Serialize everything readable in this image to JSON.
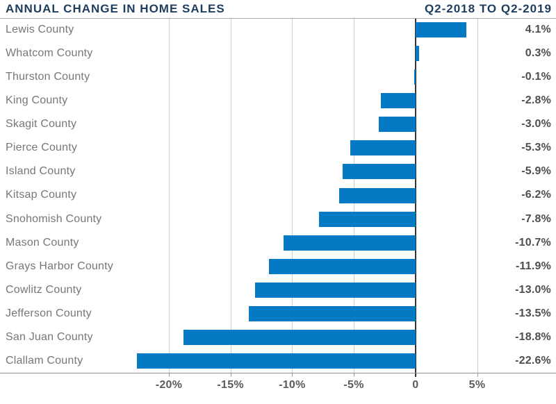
{
  "header": {
    "title": "ANNUAL CHANGE IN HOME SALES",
    "period": "Q2-2018 TO Q2-2019"
  },
  "chart_data": {
    "type": "bar",
    "orientation": "horizontal",
    "title": "ANNUAL CHANGE IN HOME SALES",
    "subtitle": "Q2-2018 TO Q2-2019",
    "xlabel": "",
    "ylabel": "",
    "categories": [
      "Lewis County",
      "Whatcom County",
      "Thurston County",
      "King County",
      "Skagit County",
      "Pierce County",
      "Island County",
      "Kitsap County",
      "Snohomish County",
      "Mason County",
      "Grays Harbor County",
      "Cowlitz County",
      "Jefferson County",
      "San Juan County",
      "Clallam County"
    ],
    "values": [
      4.1,
      0.3,
      -0.1,
      -2.8,
      -3.0,
      -5.3,
      -5.9,
      -6.2,
      -7.8,
      -10.7,
      -11.9,
      -13.0,
      -13.5,
      -18.8,
      -22.6
    ],
    "value_labels": [
      "4.1%",
      "0.3%",
      "-0.1%",
      "-2.8%",
      "-3.0%",
      "-5.3%",
      "-5.9%",
      "-6.2%",
      "-7.8%",
      "-10.7%",
      "-11.9%",
      "-13.0%",
      "-13.5%",
      "-18.8%",
      "-22.6%"
    ],
    "x_ticks": [
      -20,
      -15,
      -10,
      -5,
      0,
      5
    ],
    "x_tick_labels": [
      "-20%",
      "-15%",
      "-10%",
      "-5%",
      "0",
      "5%"
    ],
    "xlim": [
      -25,
      6
    ],
    "grid": true,
    "legend": false,
    "bar_color": "#057ac4"
  },
  "colors": {
    "header_navy": "#1e3c5e",
    "bar_blue": "#057ac4",
    "county_label_gray": "#76777a",
    "value_label_gray": "#4d4e50",
    "tick_label_gray": "#5a5b5e",
    "gridline_gray": "#cbccce",
    "zero_line_dark": "#333538",
    "axis_gray": "#8e9093",
    "background": "#ffffff"
  }
}
